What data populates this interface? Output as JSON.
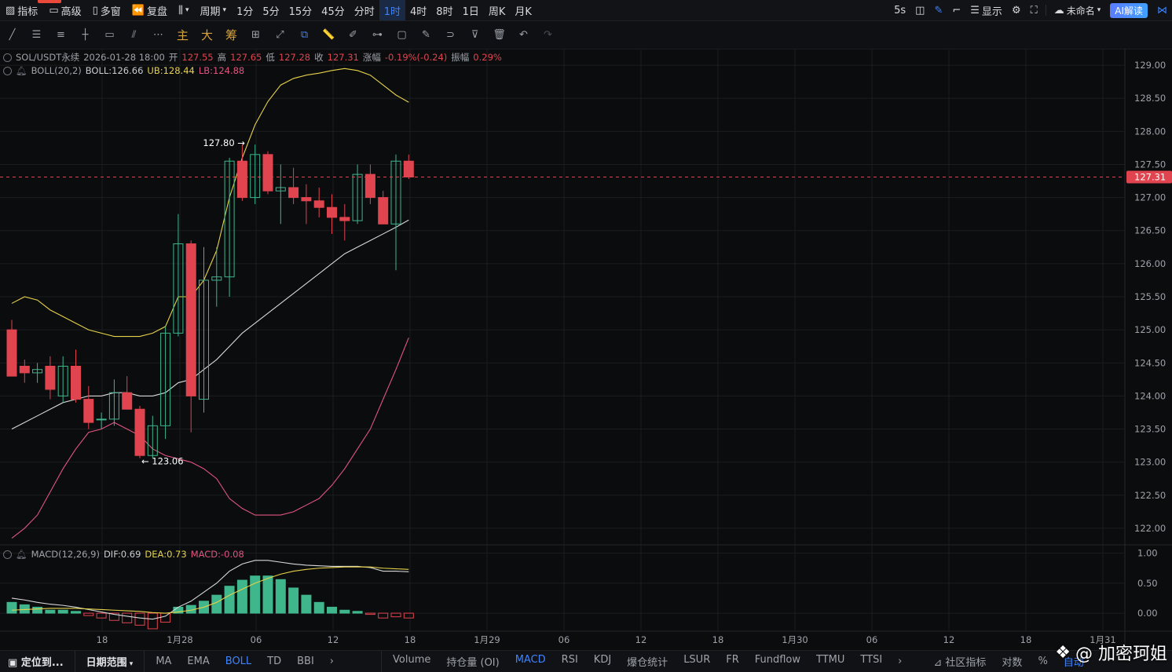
{
  "topbar": {
    "indicator_label": "指标",
    "advanced_label": "高级",
    "multiwindow_label": "多窗",
    "replay_label": "复盘",
    "period_label": "周期",
    "intervals": [
      "1分",
      "5分",
      "15分",
      "45分",
      "分时",
      "1时",
      "4时",
      "8时",
      "1日",
      "周K",
      "月K"
    ],
    "active_interval": "1时",
    "refresh_label": "5s",
    "display_label": "显示",
    "layout_label": "未命名",
    "ai_label": "AI解读"
  },
  "toolbar2": {
    "main_label": "主",
    "big_label": "大",
    "chip_label": "筹"
  },
  "legend": {
    "symbol": "SOL/USDT永续",
    "datetime": "2026-01-28 18:00",
    "open_label": "开",
    "open": "127.55",
    "high_label": "高",
    "high": "127.65",
    "low_label": "低",
    "low": "127.28",
    "close_label": "收",
    "close": "127.31",
    "change_label": "涨幅",
    "change": "-0.19%(-0.24)",
    "amplitude_label": "振幅",
    "amplitude": "0.29%",
    "boll_name": "BOLL(20,2)",
    "boll_mid": "BOLL:126.66",
    "boll_ub": "UB:128.44",
    "boll_lb": "LB:124.88",
    "macd_name": "MACD(12,26,9)",
    "macd_dif": "DIF:0.69",
    "macd_dea": "DEA:0.73",
    "macd_val": "MACD:-0.08"
  },
  "annotations": {
    "high_mark": "127.80",
    "low_mark": "123.06",
    "current_price": "127.31"
  },
  "colors": {
    "up": "#3fb68b",
    "down": "#e0444f",
    "boll_mid": "#d8d8d8",
    "boll_ub": "#e6d24a",
    "boll_lb": "#e0557f",
    "accent": "#3d83ff"
  },
  "chart_data": {
    "type": "candlestick",
    "price_axis": {
      "min": 121.75,
      "max": 129.25,
      "ticks": [
        "129.00",
        "128.50",
        "128.00",
        "127.50",
        "127.00",
        "126.50",
        "126.00",
        "125.50",
        "125.00",
        "124.50",
        "124.00",
        "123.50",
        "123.00",
        "122.50",
        "122.00"
      ]
    },
    "macd_axis": {
      "min": -0.3,
      "max": 1.1,
      "ticks": [
        "1.00",
        "0.50",
        "0.00"
      ]
    },
    "time_labels": [
      "18",
      "1月28",
      "06",
      "12",
      "18",
      "1月29",
      "06",
      "12",
      "18",
      "1月30",
      "06",
      "12",
      "18",
      "1月31"
    ],
    "candles": [
      {
        "o": 125.0,
        "h": 125.15,
        "l": 124.3,
        "c": 124.3
      },
      {
        "o": 124.45,
        "h": 124.55,
        "l": 124.2,
        "c": 124.35
      },
      {
        "o": 124.35,
        "h": 124.5,
        "l": 124.2,
        "c": 124.4
      },
      {
        "o": 124.45,
        "h": 124.6,
        "l": 123.95,
        "c": 124.1
      },
      {
        "o": 124.0,
        "h": 124.6,
        "l": 123.9,
        "c": 124.45
      },
      {
        "o": 124.45,
        "h": 124.7,
        "l": 123.9,
        "c": 123.95
      },
      {
        "o": 123.95,
        "h": 124.15,
        "l": 123.5,
        "c": 123.6
      },
      {
        "o": 123.65,
        "h": 123.75,
        "l": 123.5,
        "c": 123.65
      },
      {
        "o": 123.65,
        "h": 124.25,
        "l": 123.55,
        "c": 124.05
      },
      {
        "o": 124.05,
        "h": 124.3,
        "l": 123.8,
        "c": 123.8
      },
      {
        "o": 123.8,
        "h": 123.85,
        "l": 123.06,
        "c": 123.1
      },
      {
        "o": 123.1,
        "h": 123.7,
        "l": 123.06,
        "c": 123.55
      },
      {
        "o": 123.55,
        "h": 125.05,
        "l": 123.35,
        "c": 124.95
      },
      {
        "o": 124.95,
        "h": 126.75,
        "l": 124.9,
        "c": 126.3
      },
      {
        "o": 126.3,
        "h": 126.35,
        "l": 123.45,
        "c": 124.0
      },
      {
        "o": 123.95,
        "h": 126.25,
        "l": 123.75,
        "c": 125.75
      },
      {
        "o": 125.75,
        "h": 126.25,
        "l": 125.35,
        "c": 125.8
      },
      {
        "o": 125.8,
        "h": 127.6,
        "l": 125.5,
        "c": 127.55
      },
      {
        "o": 127.55,
        "h": 127.8,
        "l": 126.95,
        "c": 127.0
      },
      {
        "o": 127.0,
        "h": 127.8,
        "l": 126.9,
        "c": 127.65
      },
      {
        "o": 127.65,
        "h": 127.7,
        "l": 127.05,
        "c": 127.1
      },
      {
        "o": 127.1,
        "h": 127.5,
        "l": 126.6,
        "c": 127.15
      },
      {
        "o": 127.15,
        "h": 127.45,
        "l": 126.9,
        "c": 127.0
      },
      {
        "o": 127.0,
        "h": 127.2,
        "l": 126.6,
        "c": 126.95
      },
      {
        "o": 126.95,
        "h": 127.15,
        "l": 126.7,
        "c": 126.85
      },
      {
        "o": 126.85,
        "h": 127.05,
        "l": 126.45,
        "c": 126.7
      },
      {
        "o": 126.7,
        "h": 126.9,
        "l": 126.35,
        "c": 126.65
      },
      {
        "o": 126.65,
        "h": 127.5,
        "l": 126.6,
        "c": 127.35
      },
      {
        "o": 127.35,
        "h": 127.5,
        "l": 126.9,
        "c": 127.0
      },
      {
        "o": 127.0,
        "h": 127.1,
        "l": 126.6,
        "c": 126.6
      },
      {
        "o": 126.6,
        "h": 127.65,
        "l": 125.9,
        "c": 127.55
      },
      {
        "o": 127.55,
        "h": 127.65,
        "l": 127.28,
        "c": 127.31
      }
    ],
    "boll_mid": [
      123.5,
      123.6,
      123.7,
      123.8,
      123.9,
      123.95,
      124.0,
      124.0,
      124.05,
      124.05,
      124.0,
      124.0,
      124.05,
      124.2,
      124.25,
      124.4,
      124.55,
      124.75,
      124.95,
      125.1,
      125.25,
      125.4,
      125.55,
      125.7,
      125.85,
      126.0,
      126.15,
      126.25,
      126.35,
      126.45,
      126.55,
      126.66
    ],
    "boll_ub": [
      125.4,
      125.5,
      125.45,
      125.3,
      125.2,
      125.1,
      125.0,
      124.95,
      124.9,
      124.9,
      124.9,
      124.95,
      125.05,
      125.5,
      125.5,
      125.75,
      126.2,
      127.0,
      127.6,
      128.1,
      128.45,
      128.7,
      128.8,
      128.85,
      128.88,
      128.92,
      128.95,
      128.92,
      128.85,
      128.7,
      128.55,
      128.44
    ],
    "boll_lb": [
      121.85,
      122.0,
      122.2,
      122.55,
      122.9,
      123.2,
      123.45,
      123.5,
      123.6,
      123.5,
      123.4,
      123.2,
      123.1,
      123.05,
      123.0,
      122.9,
      122.75,
      122.45,
      122.3,
      122.2,
      122.2,
      122.2,
      122.25,
      122.35,
      122.45,
      122.65,
      122.9,
      123.2,
      123.5,
      123.95,
      124.4,
      124.88
    ],
    "macd_hist": [
      0.18,
      0.14,
      0.1,
      0.05,
      0.05,
      0.03,
      -0.04,
      -0.08,
      -0.12,
      -0.16,
      -0.2,
      -0.26,
      -0.15,
      0.1,
      0.13,
      0.2,
      0.3,
      0.45,
      0.55,
      0.62,
      0.62,
      0.56,
      0.42,
      0.3,
      0.18,
      0.1,
      0.05,
      0.03,
      -0.02,
      -0.08,
      -0.06,
      -0.08
    ],
    "macd_dif": [
      0.25,
      0.22,
      0.18,
      0.15,
      0.13,
      0.1,
      0.06,
      0.02,
      -0.02,
      -0.05,
      -0.08,
      -0.1,
      -0.05,
      0.1,
      0.2,
      0.35,
      0.5,
      0.7,
      0.82,
      0.88,
      0.88,
      0.85,
      0.82,
      0.8,
      0.79,
      0.78,
      0.78,
      0.78,
      0.76,
      0.7,
      0.7,
      0.69
    ],
    "macd_dea": [
      0.05,
      0.06,
      0.07,
      0.08,
      0.08,
      0.08,
      0.07,
      0.06,
      0.05,
      0.04,
      0.03,
      0.01,
      0.0,
      0.02,
      0.05,
      0.1,
      0.18,
      0.3,
      0.4,
      0.5,
      0.58,
      0.65,
      0.7,
      0.73,
      0.75,
      0.76,
      0.77,
      0.77,
      0.77,
      0.75,
      0.74,
      0.73
    ]
  },
  "bottombar": {
    "locate_label": "定位到...",
    "range_label": "日期范围",
    "main_indicators": [
      "MA",
      "EMA",
      "BOLL",
      "TD",
      "BBI"
    ],
    "active_main": "BOLL",
    "sub_indicators": [
      "Volume",
      "持仓量 (OI)",
      "MACD",
      "RSI",
      "KDJ",
      "爆仓统计",
      "LSUR",
      "FR",
      "Fundflow",
      "TTMU",
      "TTSI"
    ],
    "active_sub": "MACD",
    "community_label": "社区指标",
    "log_label": "对数",
    "pct_label": "%",
    "auto_label": "自动"
  },
  "watermark": {
    "text": "@ 加密珂姐"
  }
}
